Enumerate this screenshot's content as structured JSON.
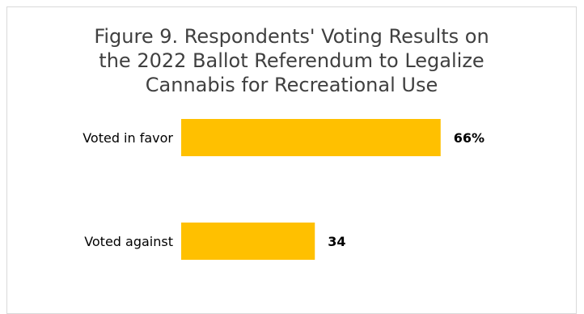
{
  "chart_data": {
    "type": "bar",
    "orientation": "horizontal",
    "title_lines": [
      "Figure 9. Respondents' Voting Results on",
      "the 2022 Ballot Referendum to Legalize",
      "Cannabis for Recreational Use"
    ],
    "categories": [
      "Voted in favor",
      "Voted against"
    ],
    "values": [
      66,
      34
    ],
    "data_labels": [
      "66%",
      "34"
    ],
    "bar_color": "#FFC000",
    "xlim": [
      0,
      100
    ],
    "grid": false,
    "legend": "none"
  }
}
